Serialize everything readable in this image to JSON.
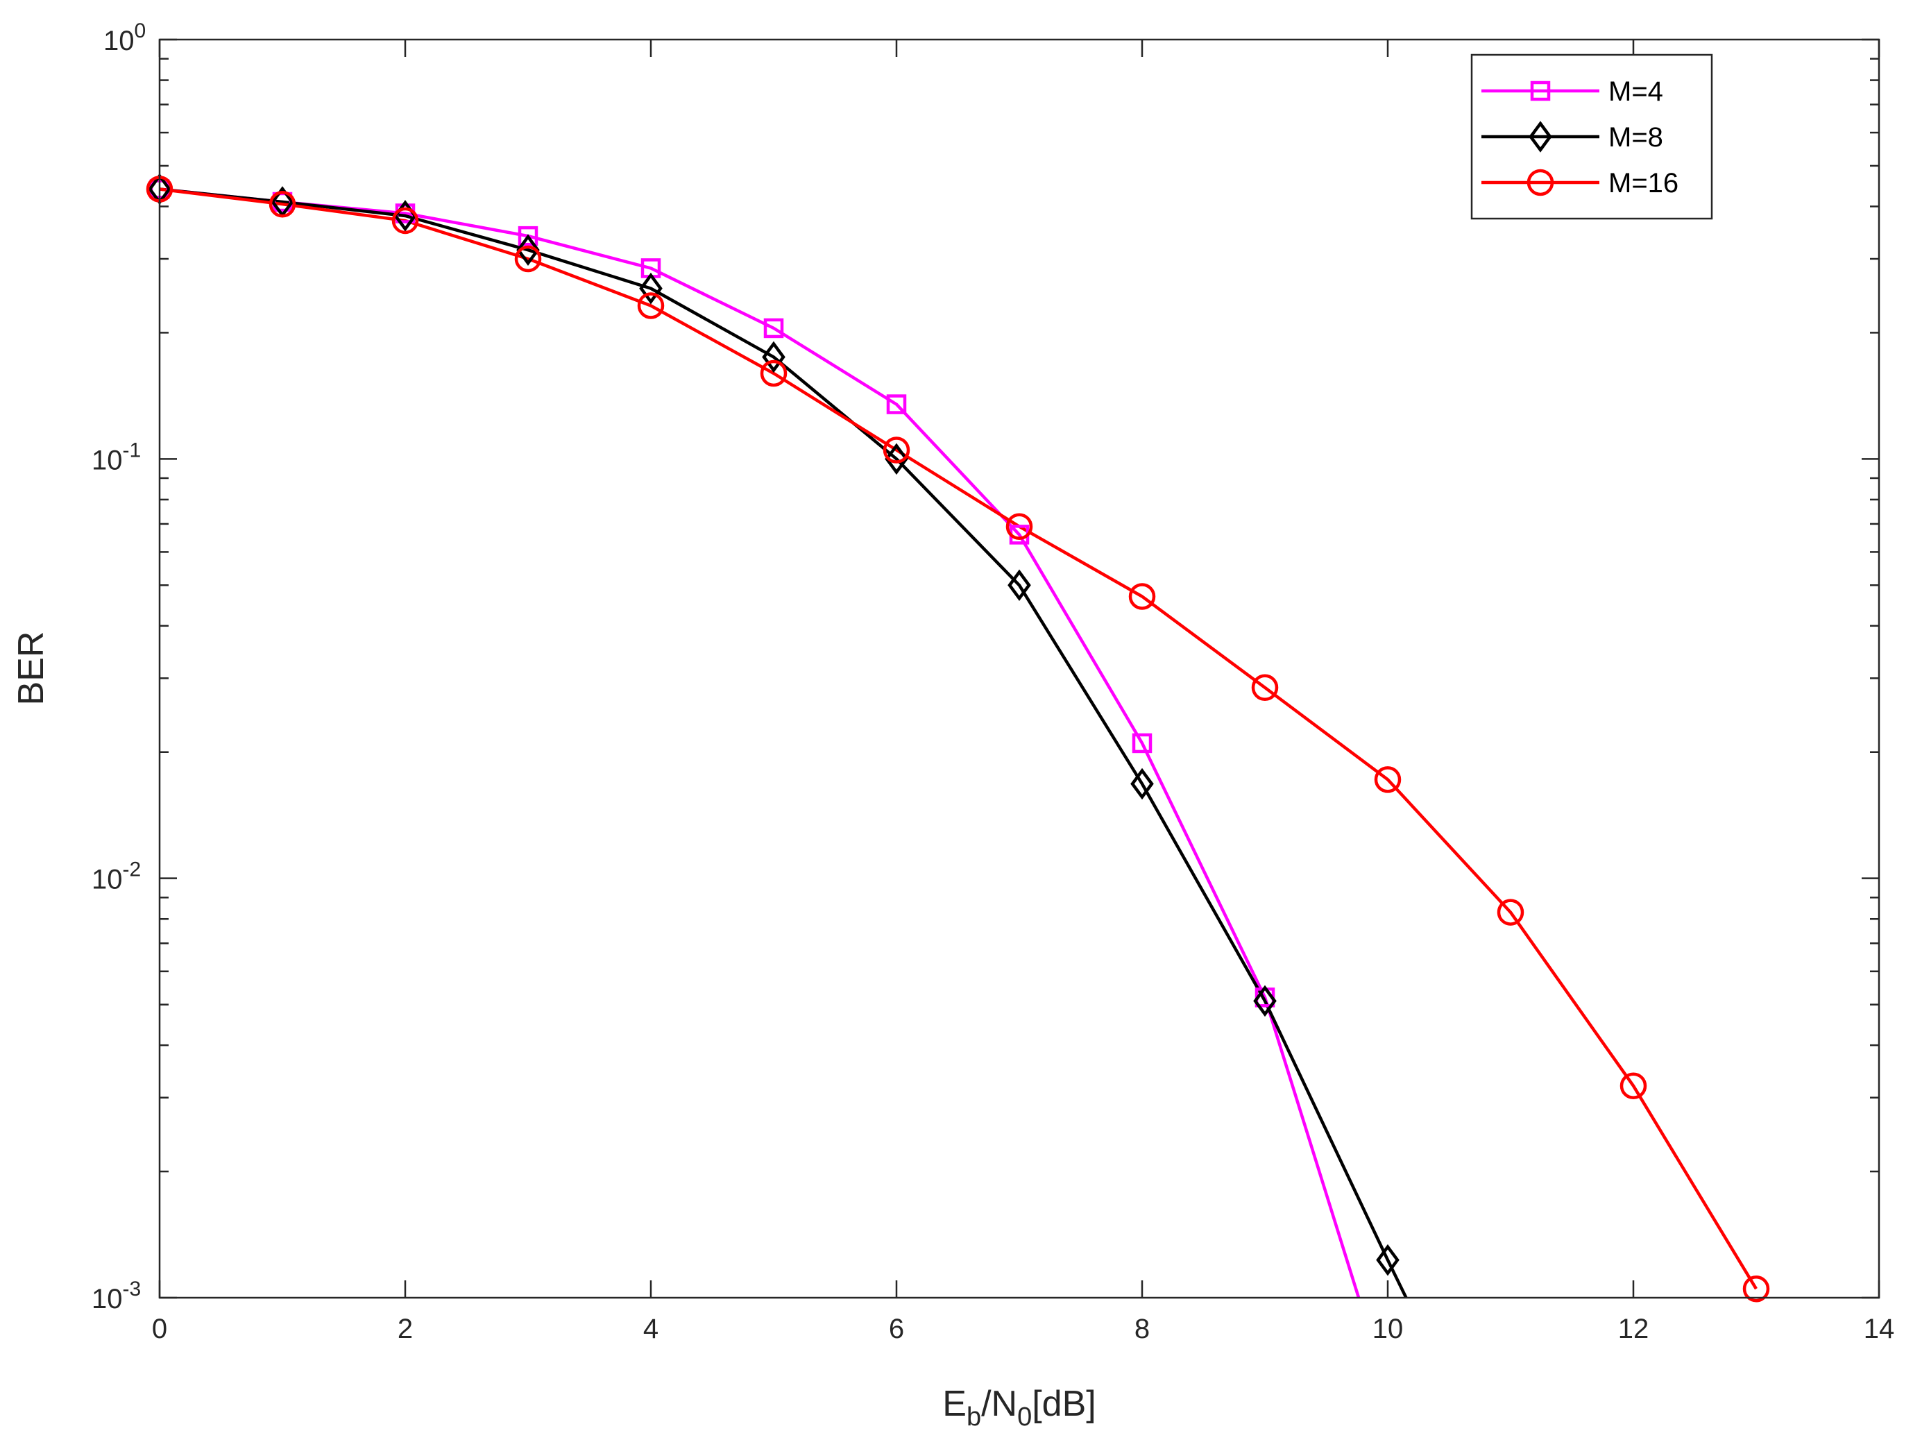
{
  "chart_data": {
    "type": "line",
    "title": "",
    "xlabel": {
      "base": "E",
      "sub1": "b",
      "mid": "/N",
      "sub2": "0",
      "tail": "[dB]"
    },
    "ylabel": "BER",
    "xlim": [
      0,
      14
    ],
    "ylim": [
      0.001,
      1
    ],
    "yscale": "log",
    "x_ticks": [
      "0",
      "2",
      "4",
      "6",
      "8",
      "10",
      "12",
      "14"
    ],
    "y_ticks": [
      {
        "base": "10",
        "exp": "0"
      },
      {
        "base": "10",
        "exp": "-1"
      },
      {
        "base": "10",
        "exp": "-2"
      },
      {
        "base": "10",
        "exp": "-3"
      }
    ],
    "grid": false,
    "legend_position": "top-right",
    "series": [
      {
        "name": "M=4",
        "color": "#ff00ff",
        "marker": "square",
        "x": [
          0,
          1,
          2,
          3,
          4,
          5,
          6,
          7,
          8,
          9,
          10
        ],
        "values": [
          0.44,
          0.41,
          0.385,
          0.34,
          0.285,
          0.205,
          0.135,
          0.066,
          0.021,
          0.0052,
          0.0006
        ]
      },
      {
        "name": "M=8",
        "color": "#000000",
        "marker": "diamond",
        "x": [
          0,
          1,
          2,
          3,
          4,
          5,
          6,
          7,
          8,
          9,
          10,
          10.15
        ],
        "values": [
          0.44,
          0.41,
          0.38,
          0.315,
          0.255,
          0.175,
          0.1,
          0.05,
          0.0168,
          0.0051,
          0.00123,
          0.001
        ]
      },
      {
        "name": "M=16",
        "color": "#ff0000",
        "marker": "circle",
        "x": [
          0,
          1,
          2,
          3,
          4,
          5,
          6,
          7,
          8,
          9,
          10,
          11,
          12,
          13
        ],
        "values": [
          0.44,
          0.405,
          0.37,
          0.3,
          0.232,
          0.16,
          0.105,
          0.069,
          0.047,
          0.0285,
          0.0172,
          0.0083,
          0.0032,
          0.00105
        ]
      }
    ]
  }
}
